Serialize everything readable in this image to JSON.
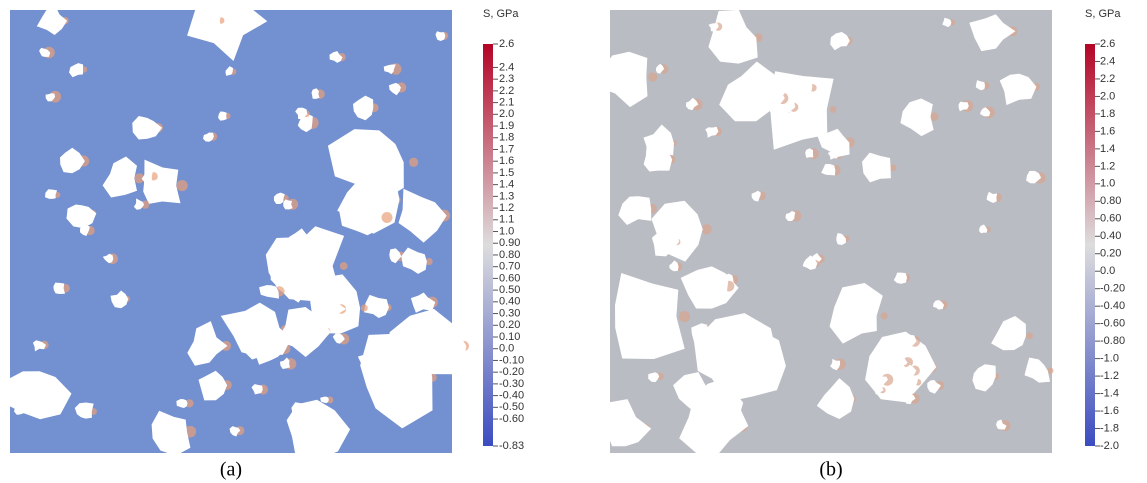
{
  "panels": [
    {
      "caption": "(a)",
      "colorbar": {
        "title": "S, GPa",
        "range": [
          -0.83,
          2.6
        ],
        "ticks": [
          2.6,
          2.4,
          2.3,
          2.2,
          2.1,
          {
            "value": 2,
            "label": "2.0"
          },
          1.9,
          1.8,
          1.7,
          1.6,
          1.5,
          1.4,
          1.3,
          1.2,
          1.1,
          {
            "value": 1,
            "label": "1.0"
          },
          {
            "value": 0.9,
            "label": "0.90"
          },
          {
            "value": 0.8,
            "label": "0.80"
          },
          {
            "value": 0.7,
            "label": "0.70"
          },
          {
            "value": 0.6,
            "label": "0.60"
          },
          {
            "value": 0.5,
            "label": "0.50"
          },
          {
            "value": 0.4,
            "label": "0.40"
          },
          {
            "value": 0.3,
            "label": "0.30"
          },
          {
            "value": 0.2,
            "label": "0.20"
          },
          {
            "value": 0.1,
            "label": "0.10"
          },
          {
            "value": 0,
            "label": "0.0"
          },
          {
            "value": -0.1,
            "label": "-0.10"
          },
          {
            "value": -0.2,
            "label": "-0.20"
          },
          {
            "value": -0.3,
            "label": "-0.30"
          },
          {
            "value": -0.4,
            "label": "-0.40"
          },
          {
            "value": -0.5,
            "label": "-0.50"
          },
          {
            "value": -0.6,
            "label": "-0.60"
          },
          -0.83
        ]
      }
    },
    {
      "caption": "(b)",
      "colorbar": {
        "title": "S, GPa",
        "range": [
          -2,
          2.6
        ],
        "ticks": [
          2.6,
          2.4,
          2.2,
          {
            "value": 2,
            "label": "2.0"
          },
          1.8,
          1.6,
          1.4,
          1.2,
          {
            "value": 1,
            "label": "1.0"
          },
          {
            "value": 0.8,
            "label": "0.80"
          },
          {
            "value": 0.6,
            "label": "0.60"
          },
          {
            "value": 0.4,
            "label": "0.40"
          },
          {
            "value": 0.2,
            "label": "0.20"
          },
          {
            "value": 0,
            "label": "0.0"
          },
          {
            "value": -0.2,
            "label": "-0.20"
          },
          {
            "value": -0.4,
            "label": "-0.40"
          },
          {
            "value": -0.6,
            "label": "-0.60"
          },
          {
            "value": -0.8,
            "label": "-0.80"
          },
          {
            "value": -1,
            "label": "-1.0"
          },
          -1.2,
          -1.4,
          -1.6,
          -1.8,
          {
            "value": -2,
            "label": "-2.0"
          }
        ]
      }
    }
  ]
}
